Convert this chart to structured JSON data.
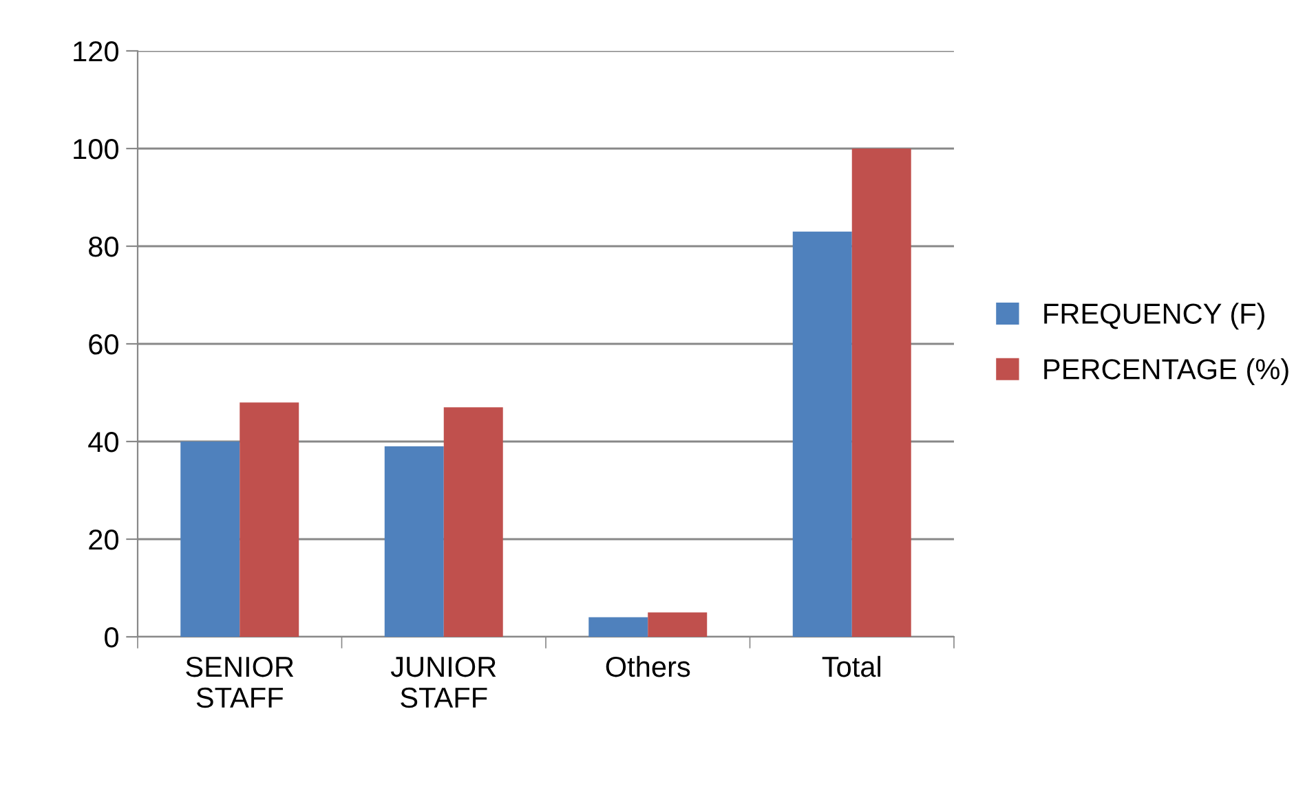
{
  "chart_data": {
    "type": "bar",
    "categories": [
      "SENIOR\nSTAFF",
      "JUNIOR\nSTAFF",
      "Others",
      "Total"
    ],
    "series": [
      {
        "name": "FREQUENCY (F)",
        "color": "#4f81bd",
        "values": [
          40,
          39,
          4,
          83
        ]
      },
      {
        "name": "PERCENTAGE (%)",
        "color": "#c0504d",
        "values": [
          48,
          47,
          5,
          100
        ]
      }
    ],
    "ylim": [
      0,
      120
    ],
    "yticks": [
      0,
      20,
      40,
      60,
      80,
      100,
      120
    ],
    "grid": "y",
    "legend": "right"
  }
}
